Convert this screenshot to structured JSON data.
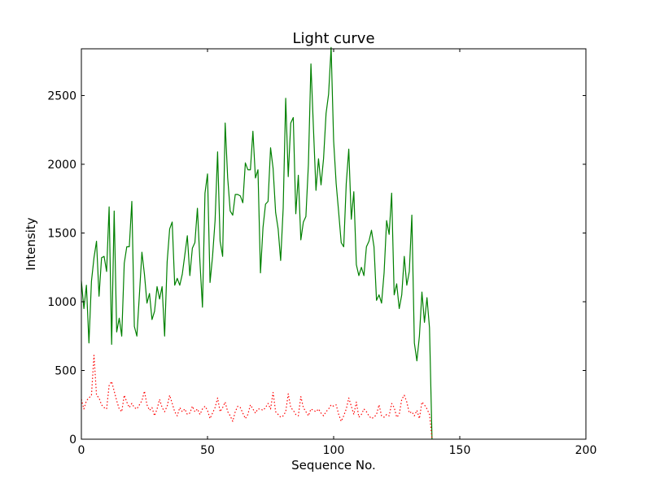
{
  "chart_data": {
    "type": "line",
    "title": "Light curve",
    "xlabel": "Sequence No.",
    "ylabel": "Intensity",
    "xlim": [
      0,
      200
    ],
    "ylim": [
      0,
      2840
    ],
    "x_ticks": [
      0,
      50,
      100,
      150,
      200
    ],
    "y_ticks": [
      0,
      500,
      1000,
      1500,
      2000,
      2500
    ],
    "x_tick_labels": [
      "0",
      "50",
      "100",
      "150",
      "200"
    ],
    "y_tick_labels": [
      "0",
      "500",
      "1000",
      "1500",
      "2000",
      "2500"
    ],
    "grid": false,
    "series": [
      {
        "color": "#008000",
        "line_style": "solid",
        "x": [
          0,
          1,
          2,
          3,
          4,
          5,
          6,
          7,
          8,
          9,
          10,
          11,
          12,
          13,
          14,
          15,
          16,
          17,
          18,
          19,
          20,
          21,
          22,
          23,
          24,
          25,
          26,
          27,
          28,
          29,
          30,
          31,
          32,
          33,
          34,
          35,
          36,
          37,
          38,
          39,
          40,
          41,
          42,
          43,
          44,
          45,
          46,
          47,
          48,
          49,
          50,
          51,
          52,
          53,
          54,
          55,
          56,
          57,
          58,
          59,
          60,
          61,
          62,
          63,
          64,
          65,
          66,
          67,
          68,
          69,
          70,
          71,
          72,
          73,
          74,
          75,
          76,
          77,
          78,
          79,
          80,
          81,
          82,
          83,
          84,
          85,
          86,
          87,
          88,
          89,
          90,
          91,
          92,
          93,
          94,
          95,
          96,
          97,
          98,
          99,
          100,
          101,
          102,
          103,
          104,
          105,
          106,
          107,
          108,
          109,
          110,
          111,
          112,
          113,
          114,
          115,
          116,
          117,
          118,
          119,
          120,
          121,
          122,
          123,
          124,
          125,
          126,
          127,
          128,
          129,
          130,
          131,
          132,
          133,
          134,
          135,
          136,
          137,
          138,
          139
        ],
        "values": [
          1150,
          950,
          1120,
          700,
          1150,
          1320,
          1440,
          1040,
          1320,
          1330,
          1220,
          1690,
          690,
          1660,
          780,
          880,
          750,
          1280,
          1400,
          1400,
          1730,
          820,
          750,
          1050,
          1360,
          1200,
          990,
          1060,
          870,
          930,
          1110,
          1020,
          1110,
          750,
          1290,
          1530,
          1580,
          1120,
          1170,
          1120,
          1200,
          1340,
          1480,
          1190,
          1390,
          1430,
          1680,
          1290,
          960,
          1790,
          1930,
          1140,
          1330,
          1590,
          2090,
          1440,
          1330,
          2300,
          1900,
          1660,
          1630,
          1780,
          1780,
          1770,
          1720,
          2010,
          1960,
          1960,
          2240,
          1900,
          1960,
          1210,
          1540,
          1710,
          1730,
          2120,
          1970,
          1650,
          1530,
          1300,
          1680,
          2480,
          1910,
          2300,
          2340,
          1640,
          1920,
          1450,
          1580,
          1620,
          2000,
          2730,
          2260,
          1810,
          2040,
          1850,
          2040,
          2370,
          2510,
          2850,
          2170,
          1860,
          1650,
          1430,
          1400,
          1860,
          2110,
          1600,
          1800,
          1270,
          1190,
          1250,
          1190,
          1400,
          1440,
          1520,
          1400,
          1010,
          1050,
          990,
          1210,
          1590,
          1490,
          1790,
          1050,
          1130,
          950,
          1050,
          1330,
          1120,
          1220,
          1630,
          700,
          570,
          750,
          1070,
          850,
          1030,
          810,
          0
        ]
      },
      {
        "color": "#ff0000",
        "line_style": "dotted",
        "x": [
          0,
          1,
          2,
          3,
          4,
          5,
          6,
          7,
          8,
          9,
          10,
          11,
          12,
          13,
          14,
          15,
          16,
          17,
          18,
          19,
          20,
          21,
          22,
          23,
          24,
          25,
          26,
          27,
          28,
          29,
          30,
          31,
          32,
          33,
          34,
          35,
          36,
          37,
          38,
          39,
          40,
          41,
          42,
          43,
          44,
          45,
          46,
          47,
          48,
          49,
          50,
          51,
          52,
          53,
          54,
          55,
          56,
          57,
          58,
          59,
          60,
          61,
          62,
          63,
          64,
          65,
          66,
          67,
          68,
          69,
          70,
          71,
          72,
          73,
          74,
          75,
          76,
          77,
          78,
          79,
          80,
          81,
          82,
          83,
          84,
          85,
          86,
          87,
          88,
          89,
          90,
          91,
          92,
          93,
          94,
          95,
          96,
          97,
          98,
          99,
          100,
          101,
          102,
          103,
          104,
          105,
          106,
          107,
          108,
          109,
          110,
          111,
          112,
          113,
          114,
          115,
          116,
          117,
          118,
          119,
          120,
          121,
          122,
          123,
          124,
          125,
          126,
          127,
          128,
          129,
          130,
          131,
          132,
          133,
          134,
          135,
          136,
          137,
          138,
          139
        ],
        "values": [
          290,
          220,
          280,
          300,
          320,
          610,
          320,
          300,
          250,
          230,
          220,
          390,
          420,
          350,
          280,
          220,
          200,
          320,
          270,
          230,
          260,
          230,
          220,
          250,
          280,
          350,
          250,
          210,
          230,
          170,
          220,
          290,
          230,
          200,
          240,
          320,
          260,
          200,
          170,
          230,
          200,
          220,
          180,
          190,
          240,
          200,
          220,
          180,
          220,
          240,
          210,
          150,
          190,
          230,
          300,
          200,
          230,
          270,
          200,
          170,
          130,
          200,
          240,
          230,
          190,
          150,
          180,
          250,
          220,
          190,
          220,
          220,
          210,
          230,
          260,
          220,
          340,
          200,
          180,
          160,
          170,
          200,
          330,
          230,
          210,
          180,
          170,
          310,
          230,
          200,
          170,
          220,
          210,
          200,
          220,
          190,
          170,
          200,
          220,
          250,
          240,
          250,
          180,
          130,
          170,
          220,
          300,
          240,
          180,
          270,
          160,
          180,
          220,
          200,
          170,
          150,
          160,
          180,
          250,
          170,
          160,
          180,
          170,
          260,
          230,
          160,
          180,
          290,
          320,
          270,
          190,
          200,
          170,
          210,
          150,
          270,
          250,
          220,
          180,
          0
        ]
      }
    ]
  }
}
